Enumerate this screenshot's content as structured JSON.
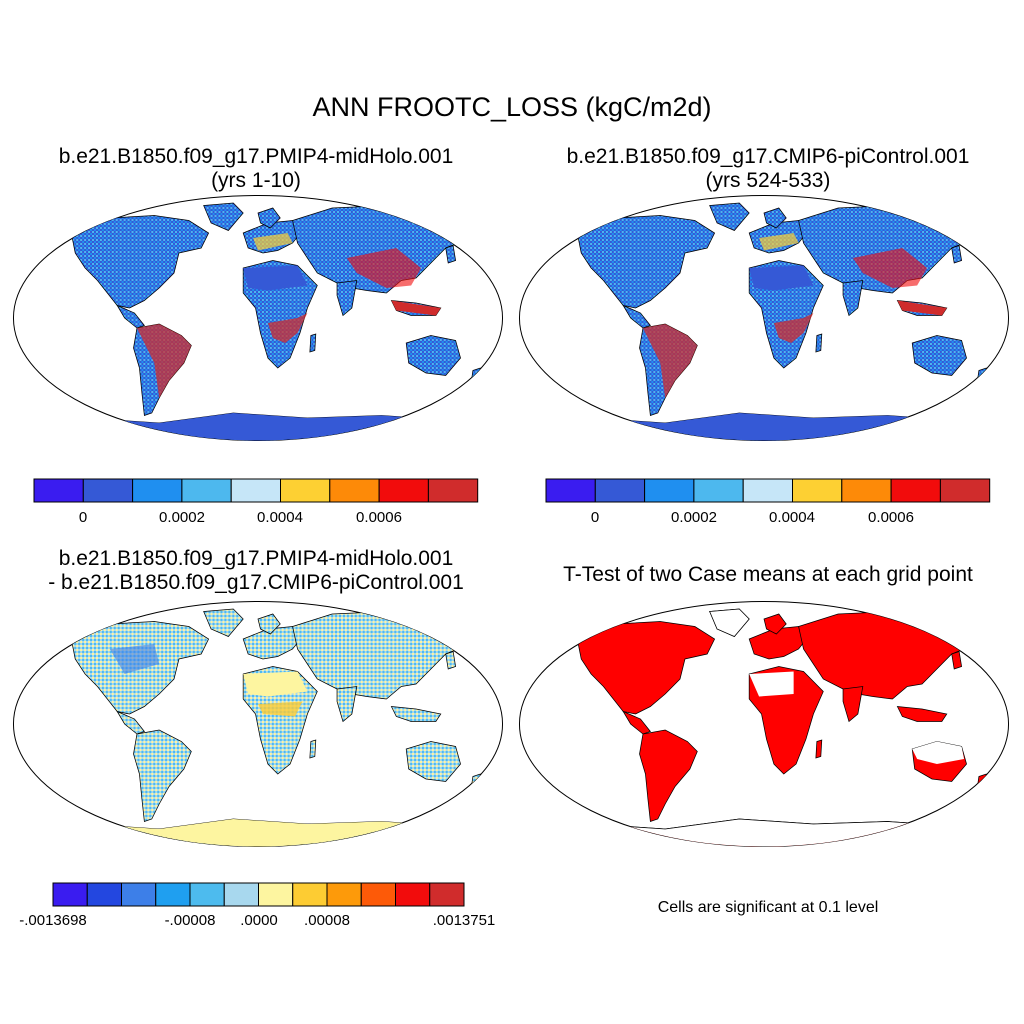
{
  "figure": {
    "main_title": "ANN FROOTC_LOSS (kgC/m2d)",
    "panels": [
      {
        "id": "case1",
        "title_line1": "b.e21.B1850.f09_g17.PMIP4-midHolo.001",
        "title_line2": "(yrs 1-10)"
      },
      {
        "id": "case2",
        "title_line1": "b.e21.B1850.f09_g17.CMIP6-piControl.001",
        "title_line2": "(yrs 524-533)"
      },
      {
        "id": "diff",
        "title_line1": "b.e21.B1850.f09_g17.PMIP4-midHolo.001",
        "title_line2": "- b.e21.B1850.f09_g17.CMIP6-piControl.001"
      },
      {
        "id": "ttest",
        "title_line1": "T-Test of two Case means at each grid point",
        "note": "Cells are significant at 0.1 level"
      }
    ],
    "colorbar_abs": {
      "colors": [
        "#3a1cf0",
        "#3559d6",
        "#1f8ff0",
        "#4db8ee",
        "#c6e6f8",
        "#fdd033",
        "#fd8a08",
        "#f20c0c",
        "#d02c2c"
      ],
      "labels": [
        "0",
        "0.0002",
        "0.0004",
        "0.0006"
      ]
    },
    "colorbar_diff": {
      "colors": [
        "#3a1cf0",
        "#2347e0",
        "#3d7fe8",
        "#1f9ff0",
        "#4dbbee",
        "#a8d8ee",
        "#fdf5a0",
        "#fdcc33",
        "#fd9a0a",
        "#fd5a08",
        "#f20c0c",
        "#d02c2c"
      ],
      "labels": [
        "-.0013698",
        "-.00008",
        ".0000",
        ".00008",
        ".0013751"
      ]
    },
    "significance_color": "#ff0000"
  }
}
